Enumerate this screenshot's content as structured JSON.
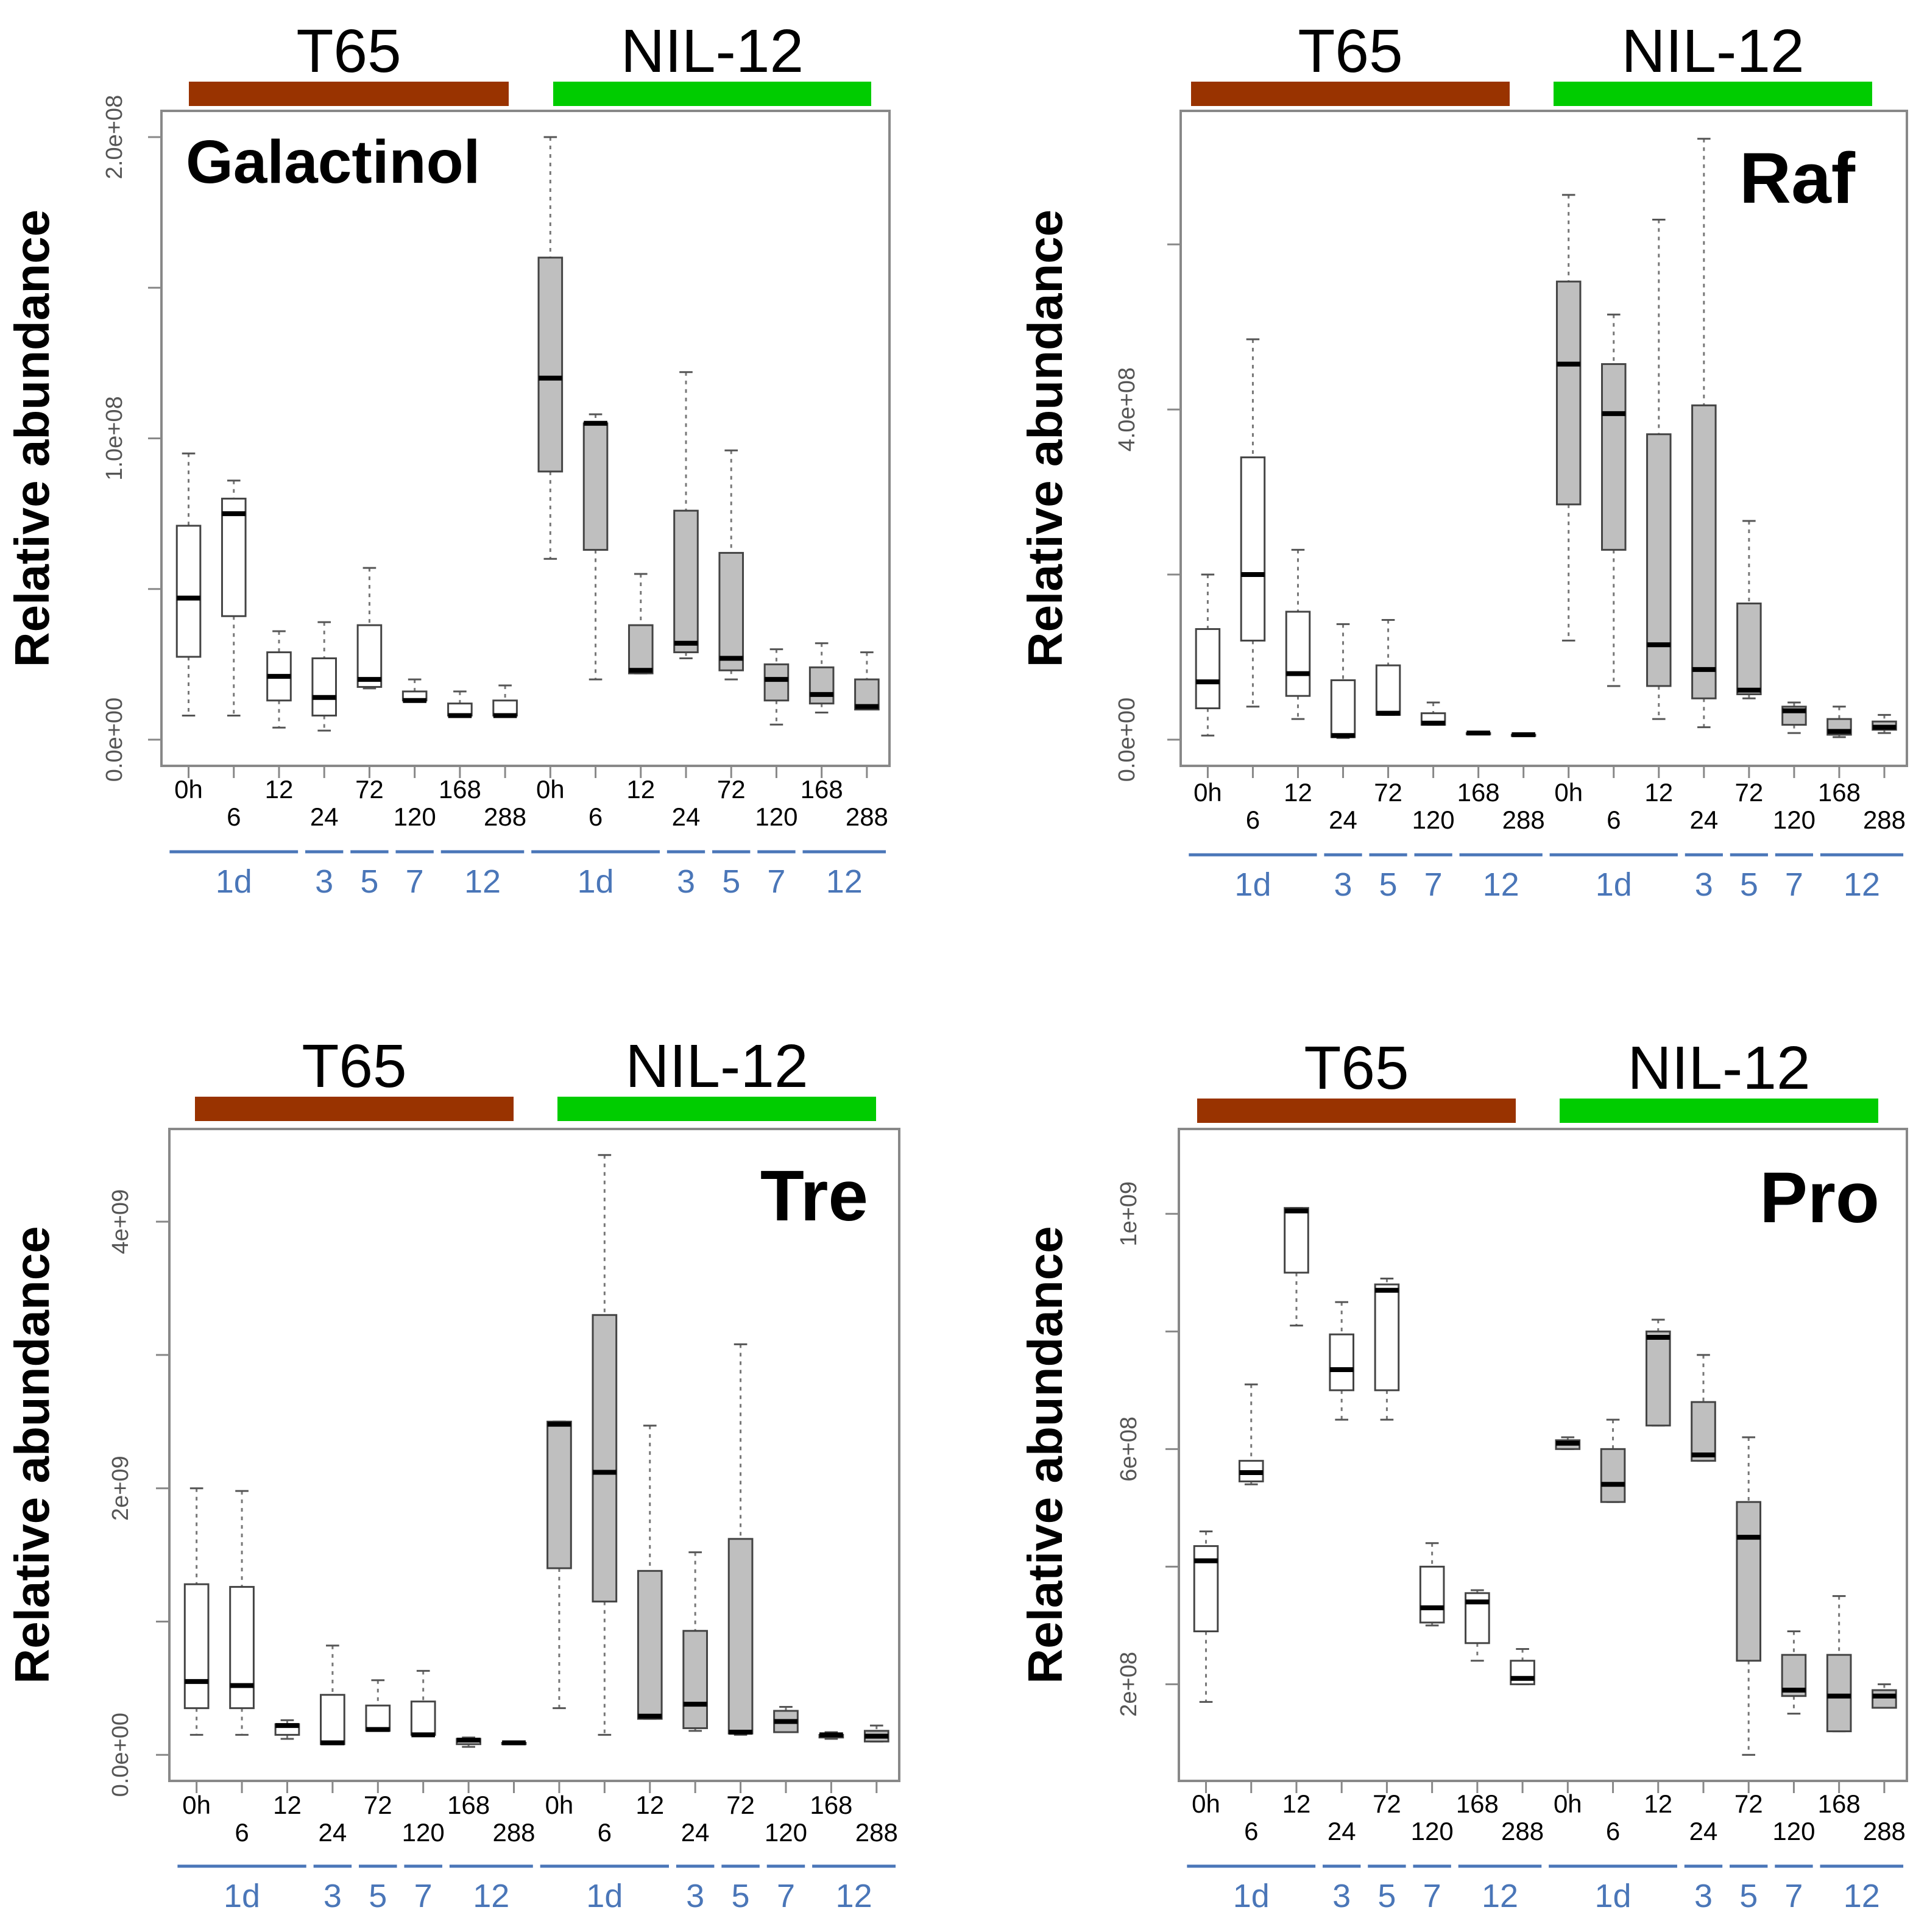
{
  "colors": {
    "t65": "#993300",
    "nil12": "#00cc00",
    "box_t65": "#ffffff",
    "box_nil12": "#bfbfbf",
    "frame": "#888888",
    "timeline": "#4a76b8"
  },
  "common": {
    "ylabel": "Relative abundance",
    "genotypes": [
      "T65",
      "NIL-12"
    ],
    "tick_labels": [
      "0h",
      "6",
      "12",
      "24",
      "72",
      "120",
      "168",
      "288",
      "0h",
      "6",
      "12",
      "24",
      "72",
      "120",
      "168",
      "288"
    ],
    "day_labels": [
      "1d",
      "3",
      "5",
      "7",
      "12",
      "1d",
      "3",
      "5",
      "7",
      "12"
    ]
  },
  "chart_data": [
    {
      "type": "box",
      "title": "Galactinol",
      "xlabel": "",
      "ylabel": "Relative abundance",
      "ylim": [
        0,
        200000000
      ],
      "yticks": [
        0,
        50000000,
        100000000,
        150000000,
        200000000
      ],
      "ytick_labels": [
        "0.0e+00",
        "",
        "1.0e+08",
        "",
        "2.0e+08"
      ],
      "categories": [
        "0h",
        "6",
        "12",
        "24",
        "72",
        "120",
        "168",
        "288",
        "0h",
        "6",
        "12",
        "24",
        "72",
        "120",
        "168",
        "288"
      ],
      "genotype": [
        "T65",
        "T65",
        "T65",
        "T65",
        "T65",
        "T65",
        "T65",
        "T65",
        "NIL-12",
        "NIL-12",
        "NIL-12",
        "NIL-12",
        "NIL-12",
        "NIL-12",
        "NIL-12",
        "NIL-12"
      ],
      "boxes": [
        [
          8000000,
          27500000,
          47000000,
          71000000,
          95000000
        ],
        [
          8000000,
          41000000,
          75000000,
          80000000,
          86000000
        ],
        [
          4000000,
          13000000,
          21000000,
          29000000,
          36000000
        ],
        [
          3000000,
          8000000,
          14000000,
          27000000,
          39000000
        ],
        [
          17000000,
          17500000,
          20000000,
          38000000,
          57000000
        ],
        [
          13000000,
          13000000,
          13000000,
          16000000,
          20000000
        ],
        [
          8000000,
          8000000,
          8000000,
          12000000,
          16000000
        ],
        [
          8000000,
          8000000,
          8000000,
          13000000,
          18000000
        ],
        [
          60000000,
          89000000,
          120000000,
          160000000,
          200000000
        ],
        [
          20000000,
          63000000,
          105000000,
          105000000,
          108000000
        ],
        [
          22000000,
          22000000,
          23000000,
          38000000,
          55000000
        ],
        [
          27000000,
          29000000,
          32000000,
          76000000,
          122000000
        ],
        [
          20000000,
          23000000,
          27000000,
          62000000,
          96000000
        ],
        [
          5000000,
          13000000,
          20000000,
          25000000,
          30000000
        ],
        [
          9000000,
          12000000,
          15000000,
          24000000,
          32000000
        ],
        [
          10000000,
          10000000,
          11000000,
          20000000,
          29000000
        ]
      ]
    },
    {
      "type": "box",
      "title": "Raf",
      "xlabel": "",
      "ylabel": "Relative abundance",
      "ylim": [
        0,
        730000000
      ],
      "yticks": [
        0,
        200000000,
        400000000,
        600000000
      ],
      "ytick_labels": [
        "0.0e+00",
        "",
        "4.0e+08",
        ""
      ],
      "categories": [
        "0h",
        "6",
        "12",
        "24",
        "72",
        "120",
        "168",
        "288",
        "0h",
        "6",
        "12",
        "24",
        "72",
        "120",
        "168",
        "288"
      ],
      "genotype": [
        "T65",
        "T65",
        "T65",
        "T65",
        "T65",
        "T65",
        "T65",
        "T65",
        "NIL-12",
        "NIL-12",
        "NIL-12",
        "NIL-12",
        "NIL-12",
        "NIL-12",
        "NIL-12",
        "NIL-12"
      ],
      "boxes": [
        [
          5000000,
          38000000,
          70000000,
          134000000,
          200000000
        ],
        [
          40000000,
          120000000,
          200000000,
          342000000,
          485000000
        ],
        [
          25000000,
          53000000,
          80000000,
          155000000,
          230000000
        ],
        [
          2000000,
          3000000,
          5000000,
          72000000,
          140000000
        ],
        [
          30000000,
          30000000,
          32000000,
          90000000,
          145000000
        ],
        [
          18000000,
          18000000,
          20000000,
          32000000,
          45000000
        ],
        [
          7000000,
          7000000,
          8000000,
          8000000,
          8000000
        ],
        [
          5000000,
          5000000,
          6000000,
          6000000,
          6000000
        ],
        [
          120000000,
          285000000,
          455000000,
          555000000,
          660000000
        ],
        [
          65000000,
          230000000,
          395000000,
          455000000,
          515000000
        ],
        [
          25000000,
          65000000,
          115000000,
          370000000,
          630000000
        ],
        [
          15000000,
          50000000,
          85000000,
          405000000,
          728000000
        ],
        [
          50000000,
          55000000,
          60000000,
          165000000,
          265000000
        ],
        [
          8000000,
          18000000,
          35000000,
          40000000,
          45000000
        ],
        [
          3000000,
          6000000,
          10000000,
          25000000,
          40000000
        ],
        [
          8000000,
          12000000,
          15000000,
          22000000,
          30000000
        ]
      ]
    },
    {
      "type": "box",
      "title": "Tre",
      "xlabel": "",
      "ylabel": "Relative abundance",
      "ylim": [
        0,
        4500000000
      ],
      "yticks": [
        0,
        1000000000,
        2000000000,
        3000000000,
        4000000000
      ],
      "ytick_labels": [
        "0.0e+00",
        "",
        "2e+09",
        "",
        "4e+09"
      ],
      "categories": [
        "0h",
        "6",
        "12",
        "24",
        "72",
        "120",
        "168",
        "288",
        "0h",
        "6",
        "12",
        "24",
        "72",
        "120",
        "168",
        "288"
      ],
      "genotype": [
        "T65",
        "T65",
        "T65",
        "T65",
        "T65",
        "T65",
        "T65",
        "T65",
        "NIL-12",
        "NIL-12",
        "NIL-12",
        "NIL-12",
        "NIL-12",
        "NIL-12",
        "NIL-12",
        "NIL-12"
      ],
      "boxes": [
        [
          150000000,
          350000000,
          550000000,
          1280000000,
          2000000000
        ],
        [
          150000000,
          350000000,
          520000000,
          1260000000,
          1980000000
        ],
        [
          120000000,
          150000000,
          220000000,
          230000000,
          260000000
        ],
        [
          80000000,
          80000000,
          90000000,
          450000000,
          820000000
        ],
        [
          180000000,
          180000000,
          190000000,
          370000000,
          560000000
        ],
        [
          150000000,
          150000000,
          150000000,
          400000000,
          630000000
        ],
        [
          60000000,
          80000000,
          110000000,
          120000000,
          130000000
        ],
        [
          80000000,
          80000000,
          90000000,
          90000000,
          100000000
        ],
        [
          350000000,
          1400000000,
          2480000000,
          2500000000,
          2500000000
        ],
        [
          150000000,
          1150000000,
          2120000000,
          3300000000,
          4500000000
        ],
        [
          270000000,
          270000000,
          290000000,
          1380000000,
          2470000000
        ],
        [
          180000000,
          200000000,
          380000000,
          930000000,
          1520000000
        ],
        [
          150000000,
          160000000,
          170000000,
          1620000000,
          3080000000
        ],
        [
          170000000,
          170000000,
          250000000,
          330000000,
          360000000
        ],
        [
          120000000,
          130000000,
          150000000,
          150000000,
          170000000
        ],
        [
          100000000,
          100000000,
          140000000,
          180000000,
          220000000
        ]
      ]
    },
    {
      "type": "box",
      "title": "Pro",
      "xlabel": "",
      "ylabel": "Relative abundance",
      "ylim": [
        80000000,
        1100000000
      ],
      "yticks": [
        200000000,
        400000000,
        600000000,
        800000000,
        1000000000
      ],
      "ytick_labels": [
        "2e+08",
        "",
        "6e+08",
        "",
        "1e+09"
      ],
      "categories": [
        "0h",
        "6",
        "12",
        "24",
        "72",
        "120",
        "168",
        "288",
        "0h",
        "6",
        "12",
        "24",
        "72",
        "120",
        "168",
        "288"
      ],
      "genotype": [
        "T65",
        "T65",
        "T65",
        "T65",
        "T65",
        "T65",
        "T65",
        "T65",
        "NIL-12",
        "NIL-12",
        "NIL-12",
        "NIL-12",
        "NIL-12",
        "NIL-12",
        "NIL-12",
        "NIL-12"
      ],
      "boxes": [
        [
          170000000,
          290000000,
          410000000,
          435000000,
          460000000
        ],
        [
          540000000,
          545000000,
          560000000,
          580000000,
          710000000
        ],
        [
          810000000,
          900000000,
          1005000000,
          1010000000,
          1010000000
        ],
        [
          650000000,
          700000000,
          735000000,
          795000000,
          850000000
        ],
        [
          650000000,
          700000000,
          870000000,
          880000000,
          890000000
        ],
        [
          300000000,
          305000000,
          330000000,
          400000000,
          440000000
        ],
        [
          240000000,
          270000000,
          340000000,
          355000000,
          360000000
        ],
        [
          200000000,
          200000000,
          210000000,
          240000000,
          260000000
        ],
        [
          600000000,
          600000000,
          610000000,
          615000000,
          620000000
        ],
        [
          510000000,
          510000000,
          540000000,
          600000000,
          650000000
        ],
        [
          640000000,
          640000000,
          790000000,
          800000000,
          820000000
        ],
        [
          580000000,
          580000000,
          590000000,
          680000000,
          760000000
        ],
        [
          80000000,
          240000000,
          450000000,
          510000000,
          620000000
        ],
        [
          150000000,
          180000000,
          190000000,
          250000000,
          290000000
        ],
        [
          120000000,
          120000000,
          180000000,
          250000000,
          350000000
        ],
        [
          160000000,
          160000000,
          180000000,
          190000000,
          200000000
        ]
      ]
    }
  ]
}
